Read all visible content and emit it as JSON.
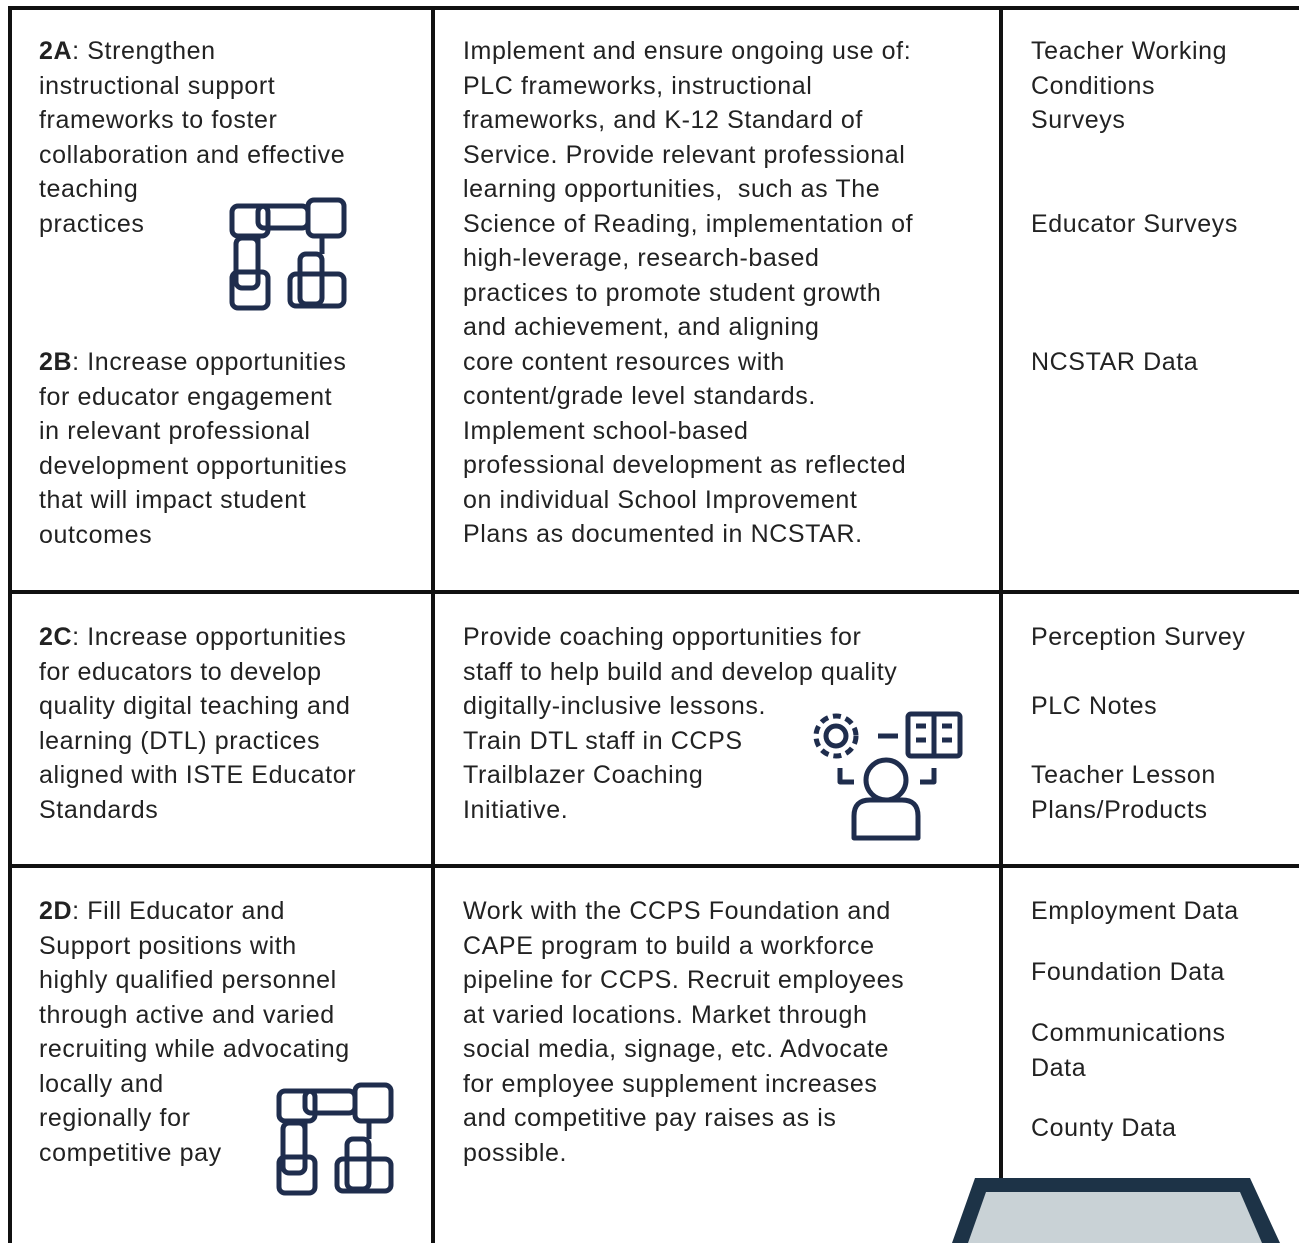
{
  "table": {
    "rows": [
      {
        "goals": [
          {
            "code": "2A",
            "lines": [
              ": Strengthen",
              "instructional support",
              "frameworks to foster",
              "collaboration and effective",
              "teaching",
              "practices"
            ]
          },
          {
            "code": "2B",
            "lines": [
              ": Increase opportunities",
              "for educator engagement",
              "in relevant professional",
              "development opportunities",
              "that will impact student",
              "outcomes"
            ]
          }
        ],
        "actions": [
          "Implement and ensure ongoing use of:",
          "PLC frameworks, instructional",
          "frameworks, and K-12 Standard of",
          "Service. Provide relevant professional",
          "learning opportunities,  such as The",
          "Science of Reading, implementation of",
          "high-leverage, research-based",
          "practices to promote student growth",
          "and achievement, and aligning",
          "core content resources with",
          "content/grade level standards.",
          "Implement school-based",
          "professional development as reflected",
          "on individual School Improvement",
          "Plans as documented in NCSTAR."
        ],
        "measures": [
          [
            "Teacher Working",
            "Conditions",
            "Surveys"
          ],
          [
            "Educator Surveys"
          ],
          [
            "NCSTAR Data"
          ]
        ]
      },
      {
        "goals": [
          {
            "code": "2C",
            "lines": [
              ": Increase opportunities",
              "for educators to develop",
              "quality digital teaching and",
              "learning (DTL) practices",
              "aligned with ISTE Educator",
              "Standards"
            ]
          }
        ],
        "actions": [
          "Provide coaching opportunities for",
          "staff to help build and develop quality",
          "digitally-inclusive lessons.",
          "Train DTL staff in CCPS",
          "Trailblazer Coaching",
          "Initiative."
        ],
        "measures": [
          [
            "Perception Survey"
          ],
          [
            "PLC Notes"
          ],
          [
            "Teacher Lesson",
            "Plans/Products"
          ]
        ]
      },
      {
        "goals": [
          {
            "code": "2D",
            "lines": [
              ": Fill Educator and",
              "Support positions with",
              "highly qualified personnel",
              "through active and varied",
              "recruiting while advocating",
              "locally and",
              "regionally for",
              "competitive pay"
            ]
          }
        ],
        "actions": [
          "Work with the CCPS Foundation and",
          "CAPE program to build a workforce",
          "pipeline for CCPS. Recruit employees",
          "at varied locations. Market through",
          "social media, signage, etc. Advocate",
          "for employee supplement increases",
          "and competitive pay raises as is",
          "possible."
        ],
        "measures": [
          [
            "Employment Data"
          ],
          [
            "Foundation Data"
          ],
          [
            "Communications",
            "Data"
          ],
          [
            "County Data"
          ]
        ]
      }
    ]
  }
}
